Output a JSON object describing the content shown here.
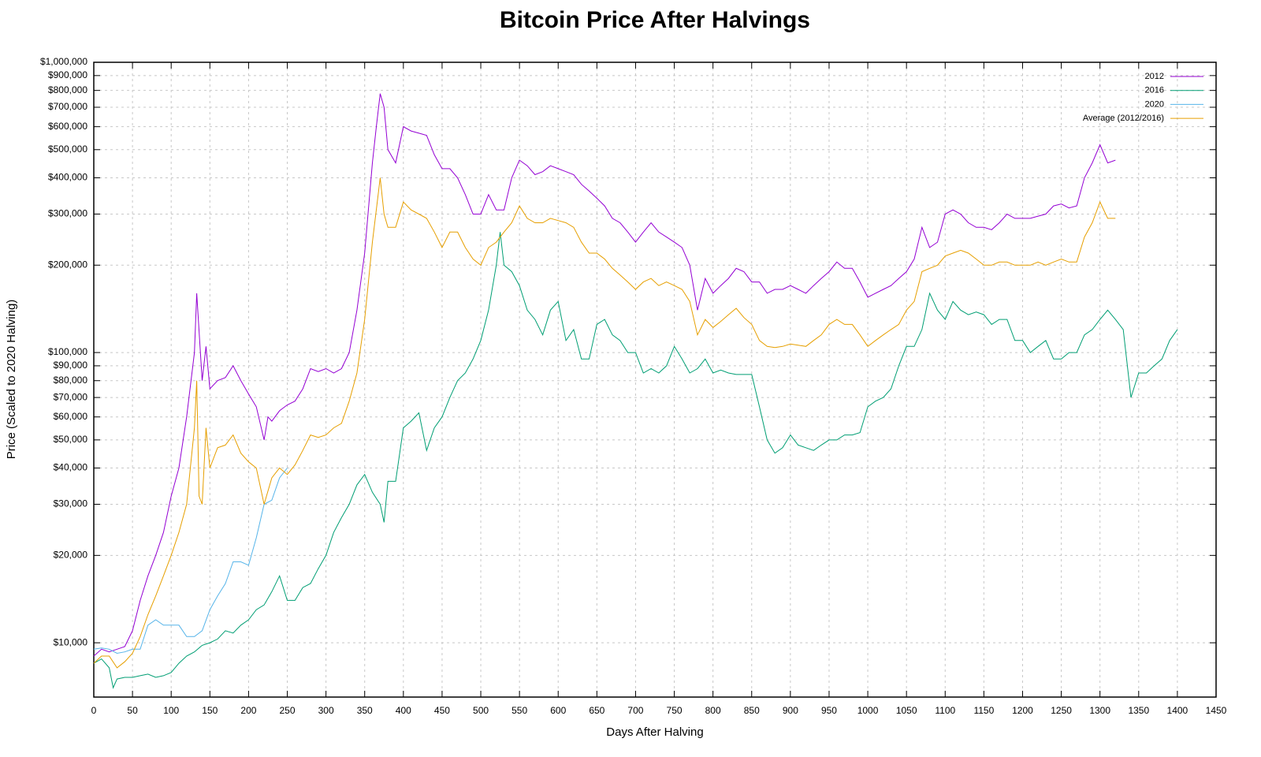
{
  "chart_data": {
    "type": "line",
    "title": "Bitcoin Price After Halvings",
    "xlabel": "Days After Halving",
    "ylabel": "Price (Scaled to 2020 Halving)",
    "log_y": true,
    "grid": true,
    "legend": "top-right",
    "xlim": [
      0,
      1450
    ],
    "xticks": [
      0,
      50,
      100,
      150,
      200,
      250,
      300,
      350,
      400,
      450,
      500,
      550,
      600,
      650,
      700,
      750,
      800,
      850,
      900,
      950,
      1000,
      1050,
      1100,
      1150,
      1200,
      1250,
      1300,
      1350,
      1400,
      1450
    ],
    "ylim": [
      6500,
      1000000
    ],
    "yticks": [
      {
        "value": 10000,
        "label": "$10,000"
      },
      {
        "value": 20000,
        "label": "$20,000"
      },
      {
        "value": 30000,
        "label": "$30,000"
      },
      {
        "value": 40000,
        "label": "$40,000"
      },
      {
        "value": 50000,
        "label": "$50,000"
      },
      {
        "value": 60000,
        "label": "$60,000"
      },
      {
        "value": 70000,
        "label": "$70,000"
      },
      {
        "value": 80000,
        "label": "$80,000"
      },
      {
        "value": 90000,
        "label": "$90,000"
      },
      {
        "value": 100000,
        "label": "$100,000"
      },
      {
        "value": 200000,
        "label": "$200,000"
      },
      {
        "value": 300000,
        "label": "$300,000"
      },
      {
        "value": 400000,
        "label": "$400,000"
      },
      {
        "value": 500000,
        "label": "$500,000"
      },
      {
        "value": 600000,
        "label": "$600,000"
      },
      {
        "value": 700000,
        "label": "$700,000"
      },
      {
        "value": 800000,
        "label": "$800,000"
      },
      {
        "value": 900000,
        "label": "$900,000"
      },
      {
        "value": 1000000,
        "label": "$1,000,000"
      }
    ],
    "series": [
      {
        "name": "2012",
        "color": "#9400d3",
        "x": [
          0,
          10,
          20,
          30,
          40,
          50,
          60,
          70,
          80,
          90,
          100,
          110,
          120,
          130,
          133,
          140,
          145,
          150,
          160,
          170,
          180,
          190,
          200,
          210,
          220,
          225,
          230,
          240,
          250,
          260,
          270,
          280,
          290,
          300,
          310,
          320,
          330,
          340,
          350,
          360,
          365,
          370,
          375,
          380,
          390,
          400,
          410,
          420,
          430,
          440,
          450,
          460,
          470,
          480,
          490,
          500,
          510,
          520,
          530,
          540,
          550,
          560,
          570,
          580,
          590,
          600,
          610,
          620,
          630,
          640,
          650,
          660,
          670,
          680,
          690,
          700,
          710,
          720,
          730,
          740,
          750,
          760,
          770,
          780,
          790,
          800,
          810,
          820,
          830,
          840,
          850,
          860,
          870,
          880,
          890,
          900,
          910,
          920,
          930,
          940,
          950,
          960,
          970,
          980,
          990,
          1000,
          1010,
          1020,
          1030,
          1040,
          1050,
          1060,
          1070,
          1080,
          1090,
          1100,
          1110,
          1120,
          1130,
          1140,
          1150,
          1160,
          1170,
          1180,
          1190,
          1200,
          1210,
          1220,
          1230,
          1240,
          1250,
          1260,
          1270,
          1280,
          1290,
          1300,
          1310,
          1320
        ],
        "values": [
          9000,
          9500,
          9300,
          9500,
          9700,
          11000,
          14000,
          17000,
          20000,
          24000,
          32000,
          40000,
          60000,
          100000,
          160000,
          80000,
          105000,
          75000,
          80000,
          82000,
          90000,
          80000,
          72000,
          65000,
          50000,
          60000,
          58000,
          63000,
          66000,
          68000,
          75000,
          88000,
          86000,
          88000,
          85000,
          88000,
          100000,
          140000,
          220000,
          450000,
          600000,
          780000,
          700000,
          500000,
          450000,
          600000,
          580000,
          570000,
          560000,
          480000,
          430000,
          430000,
          400000,
          350000,
          300000,
          300000,
          350000,
          310000,
          310000,
          400000,
          460000,
          440000,
          410000,
          420000,
          440000,
          430000,
          420000,
          410000,
          380000,
          360000,
          340000,
          320000,
          290000,
          280000,
          260000,
          240000,
          260000,
          280000,
          260000,
          250000,
          240000,
          230000,
          200000,
          140000,
          180000,
          160000,
          170000,
          180000,
          195000,
          190000,
          175000,
          175000,
          160000,
          165000,
          165000,
          170000,
          165000,
          160000,
          170000,
          180000,
          190000,
          205000,
          195000,
          195000,
          175000,
          155000,
          160000,
          165000,
          170000,
          180000,
          190000,
          210000,
          270000,
          230000,
          240000,
          300000,
          310000,
          300000,
          280000,
          270000,
          270000,
          265000,
          280000,
          300000,
          290000,
          290000,
          290000,
          295000,
          300000,
          320000,
          325000,
          315000,
          320000,
          400000,
          450000,
          520000,
          450000,
          460000
        ]
      },
      {
        "name": "2016",
        "color": "#009e73",
        "x": [
          0,
          10,
          20,
          25,
          30,
          40,
          50,
          60,
          70,
          80,
          90,
          100,
          110,
          120,
          130,
          140,
          150,
          160,
          170,
          180,
          190,
          200,
          210,
          220,
          230,
          240,
          250,
          260,
          270,
          280,
          290,
          300,
          310,
          320,
          330,
          340,
          350,
          360,
          370,
          375,
          380,
          390,
          400,
          410,
          420,
          430,
          440,
          450,
          460,
          470,
          480,
          490,
          500,
          510,
          520,
          525,
          530,
          540,
          550,
          560,
          570,
          580,
          590,
          600,
          610,
          620,
          630,
          640,
          650,
          660,
          670,
          680,
          690,
          700,
          710,
          720,
          730,
          740,
          750,
          760,
          770,
          780,
          790,
          800,
          810,
          820,
          830,
          840,
          850,
          860,
          870,
          880,
          890,
          900,
          910,
          920,
          930,
          940,
          950,
          960,
          970,
          980,
          990,
          1000,
          1010,
          1020,
          1030,
          1040,
          1050,
          1060,
          1070,
          1080,
          1090,
          1100,
          1110,
          1120,
          1130,
          1140,
          1150,
          1160,
          1170,
          1180,
          1190,
          1200,
          1210,
          1220,
          1230,
          1240,
          1250,
          1260,
          1270,
          1280,
          1290,
          1300,
          1310,
          1320,
          1330,
          1340,
          1350,
          1360,
          1370,
          1380,
          1390,
          1400
        ],
        "values": [
          8500,
          8800,
          8200,
          7000,
          7500,
          7600,
          7600,
          7700,
          7800,
          7600,
          7700,
          7900,
          8500,
          9000,
          9300,
          9800,
          10000,
          10300,
          11000,
          10800,
          11500,
          12000,
          13000,
          13500,
          15000,
          17000,
          14000,
          14000,
          15500,
          16000,
          18000,
          20000,
          24000,
          27000,
          30000,
          35000,
          38000,
          33000,
          30000,
          26000,
          36000,
          36000,
          55000,
          58000,
          62000,
          46000,
          55000,
          60000,
          70000,
          80000,
          85000,
          95000,
          110000,
          140000,
          200000,
          260000,
          200000,
          190000,
          170000,
          140000,
          130000,
          115000,
          140000,
          150000,
          110000,
          120000,
          95000,
          95000,
          125000,
          130000,
          115000,
          110000,
          100000,
          100000,
          85000,
          88000,
          85000,
          90000,
          105000,
          95000,
          85000,
          88000,
          95000,
          85000,
          87000,
          85000,
          84000,
          84000,
          84000,
          65000,
          50000,
          45000,
          47000,
          52000,
          48000,
          47000,
          46000,
          48000,
          50000,
          50000,
          52000,
          52000,
          53000,
          65000,
          68000,
          70000,
          75000,
          90000,
          105000,
          105000,
          120000,
          160000,
          140000,
          130000,
          150000,
          140000,
          135000,
          138000,
          135000,
          125000,
          130000,
          130000,
          110000,
          110000,
          100000,
          105000,
          110000,
          95000,
          95000,
          100000,
          100000,
          115000,
          120000,
          130000,
          140000,
          130000,
          120000,
          70000,
          85000,
          85000,
          90000,
          95000,
          110000,
          120000
        ]
      },
      {
        "name": "2020",
        "color": "#56b4e9",
        "x": [
          0,
          10,
          20,
          30,
          40,
          50,
          60,
          70,
          80,
          90,
          100,
          110,
          120,
          130,
          140,
          150,
          160,
          170,
          180,
          190,
          200,
          210,
          220,
          230,
          240,
          250
        ],
        "values": [
          9500,
          9600,
          9500,
          9200,
          9300,
          9500,
          9500,
          11500,
          12000,
          11500,
          11500,
          11500,
          10500,
          10500,
          11000,
          13000,
          14500,
          16000,
          19000,
          19000,
          18500,
          23000,
          30000,
          31000,
          37000,
          40000
        ]
      },
      {
        "name": "Average (2012/2016)",
        "color": "#e69f00",
        "x": [
          0,
          10,
          20,
          30,
          40,
          50,
          60,
          70,
          80,
          90,
          100,
          110,
          120,
          130,
          133,
          136,
          140,
          145,
          150,
          160,
          170,
          180,
          190,
          200,
          210,
          220,
          230,
          240,
          250,
          260,
          270,
          280,
          290,
          300,
          310,
          320,
          330,
          340,
          350,
          360,
          370,
          375,
          380,
          390,
          400,
          410,
          420,
          430,
          440,
          450,
          460,
          470,
          480,
          490,
          500,
          510,
          520,
          530,
          540,
          550,
          560,
          570,
          580,
          590,
          600,
          610,
          620,
          630,
          640,
          650,
          660,
          670,
          680,
          690,
          700,
          710,
          720,
          730,
          740,
          750,
          760,
          770,
          780,
          790,
          800,
          810,
          820,
          830,
          840,
          850,
          860,
          870,
          880,
          890,
          900,
          910,
          920,
          930,
          940,
          950,
          960,
          970,
          980,
          990,
          1000,
          1010,
          1020,
          1030,
          1040,
          1050,
          1060,
          1070,
          1080,
          1090,
          1100,
          1110,
          1120,
          1130,
          1140,
          1150,
          1160,
          1170,
          1180,
          1190,
          1200,
          1210,
          1220,
          1230,
          1240,
          1250,
          1260,
          1270,
          1280,
          1290,
          1300,
          1310,
          1320
        ],
        "values": [
          8500,
          9000,
          9000,
          8200,
          8600,
          9200,
          10500,
          12500,
          14500,
          17000,
          20000,
          24000,
          30000,
          55000,
          80000,
          32000,
          30000,
          55000,
          40000,
          47000,
          48000,
          52000,
          45000,
          42000,
          40000,
          30000,
          37000,
          40000,
          38000,
          41000,
          46000,
          52000,
          51000,
          52000,
          55000,
          57000,
          68000,
          85000,
          130000,
          240000,
          400000,
          300000,
          270000,
          270000,
          330000,
          310000,
          300000,
          290000,
          260000,
          230000,
          260000,
          260000,
          230000,
          210000,
          200000,
          230000,
          240000,
          260000,
          280000,
          320000,
          290000,
          280000,
          280000,
          290000,
          285000,
          280000,
          270000,
          240000,
          220000,
          220000,
          210000,
          195000,
          185000,
          175000,
          165000,
          175000,
          180000,
          170000,
          175000,
          170000,
          165000,
          150000,
          115000,
          130000,
          122000,
          128000,
          135000,
          142000,
          132000,
          125000,
          110000,
          105000,
          104000,
          105000,
          107000,
          106000,
          105000,
          110000,
          115000,
          125000,
          130000,
          125000,
          125000,
          115000,
          105000,
          110000,
          115000,
          120000,
          125000,
          140000,
          150000,
          190000,
          195000,
          200000,
          215000,
          220000,
          225000,
          220000,
          210000,
          200000,
          200000,
          205000,
          205000,
          200000,
          200000,
          200000,
          205000,
          200000,
          205000,
          210000,
          205000,
          205000,
          250000,
          280000,
          330000,
          290000,
          290000
        ]
      }
    ]
  }
}
